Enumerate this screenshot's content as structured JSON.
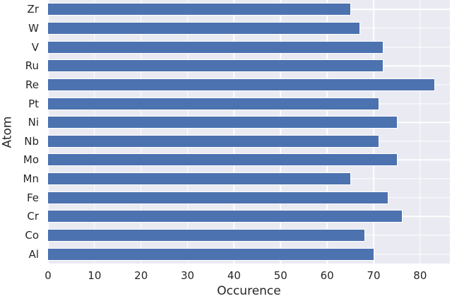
{
  "chart_data": {
    "type": "bar",
    "orientation": "horizontal",
    "title": "",
    "xlabel": "Occurence",
    "ylabel": "Atom",
    "categories": [
      "Zr",
      "W",
      "V",
      "Ru",
      "Re",
      "Pt",
      "Ni",
      "Nb",
      "Mo",
      "Mn",
      "Fe",
      "Cr",
      "Co",
      "Al"
    ],
    "values": [
      65,
      67,
      72,
      72,
      83,
      71,
      75,
      71,
      75,
      65,
      73,
      76,
      68,
      70
    ],
    "x_ticks": [
      0,
      10,
      20,
      30,
      40,
      50,
      60,
      70,
      80
    ],
    "xlim": [
      0,
      86.4
    ],
    "grid": true,
    "legend": "none",
    "style": {
      "bar_color": "#4C72B0",
      "bar_edge_color": "#FFFFFF",
      "plot_background": "#EAEAF2",
      "gridline_color": "#FFFFFF",
      "text_color": "#262626",
      "figure_background": "#FFFFFF"
    }
  }
}
